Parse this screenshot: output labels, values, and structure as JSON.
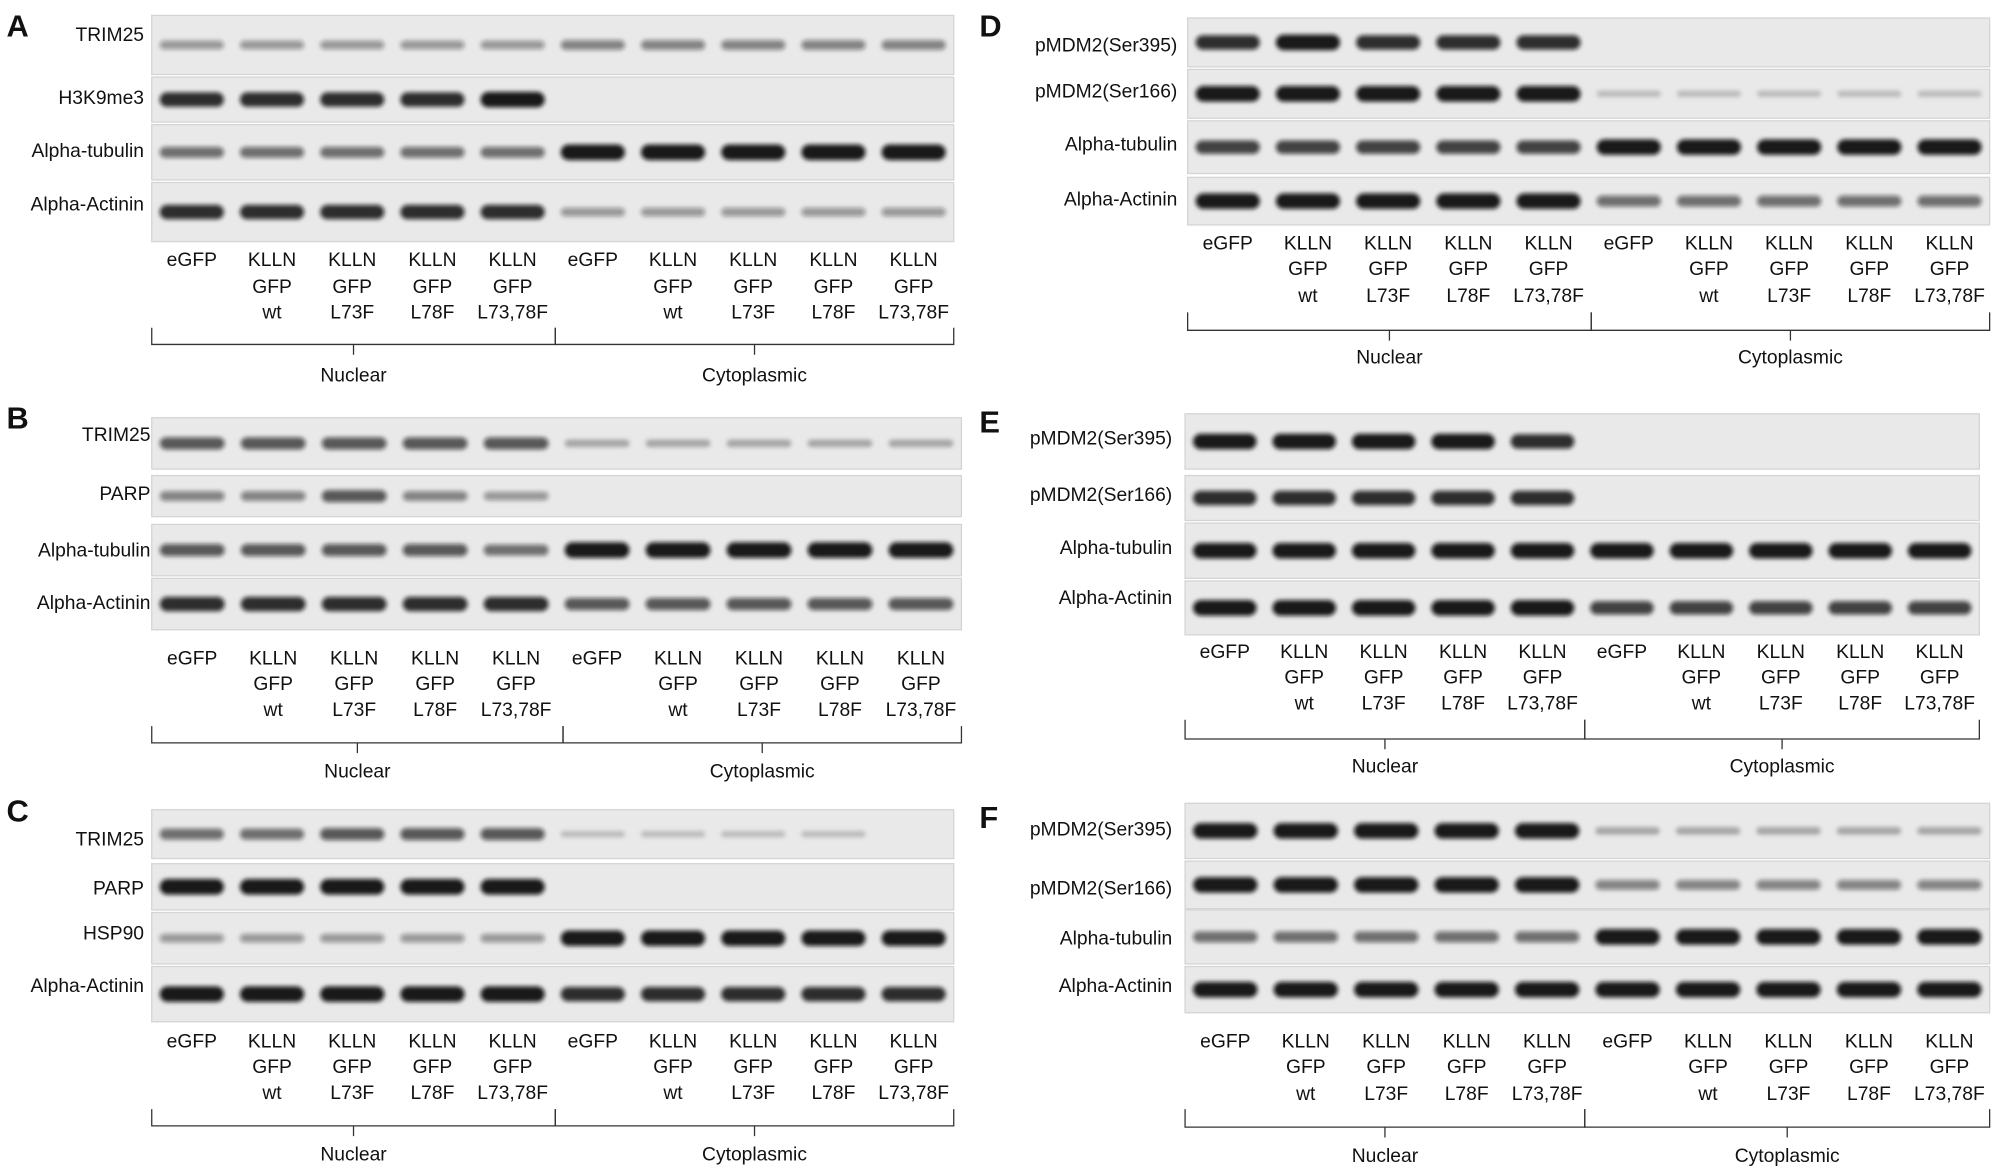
{
  "panels": [
    {
      "letter": "A",
      "rows": [
        "TRIM25",
        "H3K9me3",
        "Alpha-tubulin",
        "Alpha-Actinin"
      ],
      "lanes": [
        [
          "eGFP"
        ],
        [
          "KLLN",
          "GFP",
          "wt"
        ],
        [
          "KLLN",
          "GFP",
          "L73F"
        ],
        [
          "KLLN",
          "GFP",
          "L78F"
        ],
        [
          "KLLN",
          "GFP",
          "L73,78F"
        ],
        [
          "eGFP"
        ],
        [
          "KLLN",
          "GFP",
          "wt"
        ],
        [
          "KLLN",
          "GFP",
          "L73F"
        ],
        [
          "KLLN",
          "GFP",
          "L78F"
        ],
        [
          "KLLN",
          "GFP",
          "L73,78F"
        ]
      ],
      "groups": [
        "Nuclear",
        "Cytoplasmic"
      ]
    },
    {
      "letter": "B",
      "rows": [
        "TRIM25",
        "PARP",
        "Alpha-tubulin",
        "Alpha-Actinin"
      ],
      "lanes": [
        [
          "eGFP"
        ],
        [
          "KLLN",
          "GFP",
          "wt"
        ],
        [
          "KLLN",
          "GFP",
          "L73F"
        ],
        [
          "KLLN",
          "GFP",
          "L78F"
        ],
        [
          "KLLN",
          "GFP",
          "L73,78F"
        ],
        [
          "eGFP"
        ],
        [
          "KLLN",
          "GFP",
          "wt"
        ],
        [
          "KLLN",
          "GFP",
          "L73F"
        ],
        [
          "KLLN",
          "GFP",
          "L78F"
        ],
        [
          "KLLN",
          "GFP",
          "L73,78F"
        ]
      ],
      "groups": [
        "Nuclear",
        "Cytoplasmic"
      ]
    },
    {
      "letter": "C",
      "rows": [
        "TRIM25",
        "PARP",
        "HSP90",
        "Alpha-Actinin"
      ],
      "lanes": [
        [
          "eGFP"
        ],
        [
          "KLLN",
          "GFP",
          "wt"
        ],
        [
          "KLLN",
          "GFP",
          "L73F"
        ],
        [
          "KLLN",
          "GFP",
          "L78F"
        ],
        [
          "KLLN",
          "GFP",
          "L73,78F"
        ],
        [
          "eGFP"
        ],
        [
          "KLLN",
          "GFP",
          "wt"
        ],
        [
          "KLLN",
          "GFP",
          "L73F"
        ],
        [
          "KLLN",
          "GFP",
          "L78F"
        ],
        [
          "KLLN",
          "GFP",
          "L73,78F"
        ]
      ],
      "groups": [
        "Nuclear",
        "Cytoplasmic"
      ]
    },
    {
      "letter": "D",
      "rows": [
        "pMDM2(Ser395)",
        "pMDM2(Ser166)",
        "Alpha-tubulin",
        "Alpha-Actinin"
      ],
      "lanes": [
        [
          "eGFP"
        ],
        [
          "KLLN",
          "GFP",
          "wt"
        ],
        [
          "KLLN",
          "GFP",
          "L73F"
        ],
        [
          "KLLN",
          "GFP",
          "L78F"
        ],
        [
          "KLLN",
          "GFP",
          "L73,78F"
        ],
        [
          "eGFP"
        ],
        [
          "KLLN",
          "GFP",
          "wt"
        ],
        [
          "KLLN",
          "GFP",
          "L73F"
        ],
        [
          "KLLN",
          "GFP",
          "L78F"
        ],
        [
          "KLLN",
          "GFP",
          "L73,78F"
        ]
      ],
      "groups": [
        "Nuclear",
        "Cytoplasmic"
      ]
    },
    {
      "letter": "E",
      "rows": [
        "pMDM2(Ser395)",
        "pMDM2(Ser166)",
        "Alpha-tubulin",
        "Alpha-Actinin"
      ],
      "lanes": [
        [
          "eGFP"
        ],
        [
          "KLLN",
          "GFP",
          "wt"
        ],
        [
          "KLLN",
          "GFP",
          "L73F"
        ],
        [
          "KLLN",
          "GFP",
          "L78F"
        ],
        [
          "KLLN",
          "GFP",
          "L73,78F"
        ],
        [
          "eGFP"
        ],
        [
          "KLLN",
          "GFP",
          "wt"
        ],
        [
          "KLLN",
          "GFP",
          "L73F"
        ],
        [
          "KLLN",
          "GFP",
          "L78F"
        ],
        [
          "KLLN",
          "GFP",
          "L73,78F"
        ]
      ],
      "groups": [
        "Nuclear",
        "Cytoplasmic"
      ]
    },
    {
      "letter": "F",
      "rows": [
        "pMDM2(Ser395)",
        "pMDM2(Ser166)",
        "Alpha-tubulin",
        "Alpha-Actinin"
      ],
      "lanes": [
        [
          "eGFP"
        ],
        [
          "KLLN",
          "GFP",
          "wt"
        ],
        [
          "KLLN",
          "GFP",
          "L73F"
        ],
        [
          "KLLN",
          "GFP",
          "L78F"
        ],
        [
          "KLLN",
          "GFP",
          "L73,78F"
        ],
        [
          "eGFP"
        ],
        [
          "KLLN",
          "GFP",
          "wt"
        ],
        [
          "KLLN",
          "GFP",
          "L73F"
        ],
        [
          "KLLN",
          "GFP",
          "L78F"
        ],
        [
          "KLLN",
          "GFP",
          "L73,78F"
        ]
      ],
      "groups": [
        "Nuclear",
        "Cytoplasmic"
      ]
    }
  ]
}
